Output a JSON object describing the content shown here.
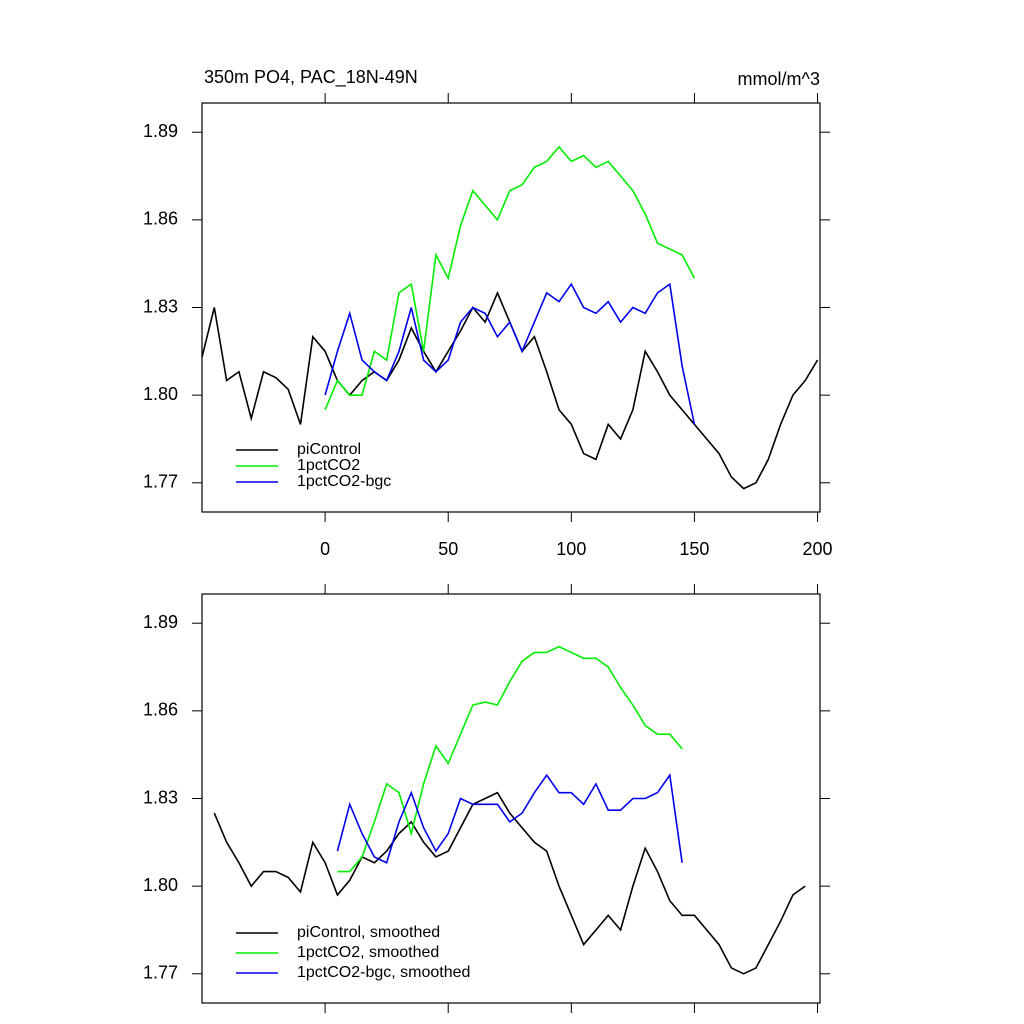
{
  "chart_data": [
    {
      "type": "line",
      "title": "350m PO4, PAC_18N-49N",
      "units": "mmol/m^3",
      "x": [
        -50,
        -45,
        -40,
        -35,
        -30,
        -25,
        -20,
        -15,
        -10,
        -5,
        0,
        5,
        10,
        15,
        20,
        25,
        30,
        35,
        40,
        45,
        50,
        55,
        60,
        65,
        70,
        75,
        80,
        85,
        90,
        95,
        100,
        105,
        110,
        115,
        120,
        125,
        130,
        135,
        140,
        145,
        150,
        155,
        160,
        165,
        170,
        175,
        180,
        185,
        190,
        195,
        200
      ],
      "xlim": [
        -50,
        201
      ],
      "xticks": [
        0,
        50,
        100,
        150,
        200
      ],
      "show_xtick_labels": true,
      "ylim": [
        1.76,
        1.9
      ],
      "yticks": [
        1.77,
        {
          "value": 1.8,
          "label": "1.80"
        },
        1.83,
        1.86,
        1.89
      ],
      "legend": "lower left",
      "series": [
        {
          "name": "piControl",
          "color": "#000000",
          "values": [
            1.813,
            1.83,
            1.805,
            1.808,
            1.792,
            1.808,
            1.806,
            1.802,
            1.79,
            1.82,
            1.815,
            1.805,
            1.8,
            1.805,
            1.808,
            1.805,
            1.812,
            1.823,
            1.815,
            1.808,
            1.815,
            1.822,
            1.83,
            1.825,
            1.835,
            1.825,
            1.815,
            1.82,
            1.808,
            1.795,
            1.79,
            1.78,
            1.778,
            1.79,
            1.785,
            1.795,
            1.815,
            1.808,
            1.8,
            1.795,
            1.79,
            1.785,
            1.78,
            1.772,
            1.768,
            1.77,
            1.778,
            1.79,
            1.8,
            1.805,
            1.812
          ]
        },
        {
          "name": "1pctCO2",
          "color": "#00ee00",
          "values": [
            null,
            null,
            null,
            null,
            null,
            null,
            null,
            null,
            null,
            null,
            1.795,
            1.805,
            1.8,
            1.8,
            1.815,
            1.812,
            1.835,
            1.838,
            1.815,
            1.848,
            1.84,
            1.858,
            1.87,
            1.865,
            1.86,
            1.87,
            1.872,
            1.878,
            1.88,
            1.885,
            1.88,
            1.882,
            1.878,
            1.88,
            1.875,
            1.87,
            1.862,
            1.852,
            1.85,
            1.848,
            1.84,
            null,
            null,
            null,
            null,
            null,
            null,
            null,
            null,
            null,
            null
          ]
        },
        {
          "name": "1pctCO2-bgc",
          "color": "#0000ee",
          "values": [
            null,
            null,
            null,
            null,
            null,
            null,
            null,
            null,
            null,
            null,
            1.8,
            1.815,
            1.828,
            1.812,
            1.808,
            1.805,
            1.815,
            1.83,
            1.812,
            1.808,
            1.812,
            1.825,
            1.83,
            1.828,
            1.82,
            1.825,
            1.815,
            1.825,
            1.835,
            1.832,
            1.838,
            1.83,
            1.828,
            1.832,
            1.825,
            1.83,
            1.828,
            1.835,
            1.838,
            1.81,
            1.79,
            null,
            null,
            null,
            null,
            null,
            null,
            null,
            null,
            null,
            null
          ]
        }
      ]
    },
    {
      "type": "line",
      "x": [
        -50,
        -45,
        -40,
        -35,
        -30,
        -25,
        -20,
        -15,
        -10,
        -5,
        0,
        5,
        10,
        15,
        20,
        25,
        30,
        35,
        40,
        45,
        50,
        55,
        60,
        65,
        70,
        75,
        80,
        85,
        90,
        95,
        100,
        105,
        110,
        115,
        120,
        125,
        130,
        135,
        140,
        145,
        150,
        155,
        160,
        165,
        170,
        175,
        180,
        185,
        190,
        195,
        200
      ],
      "xlim": [
        -50,
        201
      ],
      "xticks": [
        0,
        50,
        100,
        150,
        200
      ],
      "show_xtick_labels": false,
      "ylim": [
        1.76,
        1.9
      ],
      "yticks": [
        1.77,
        {
          "value": 1.8,
          "label": "1.80"
        },
        1.83,
        1.86,
        1.89
      ],
      "legend": "lower left",
      "series": [
        {
          "name": "piControl, smoothed",
          "color": "#000000",
          "values": [
            null,
            1.825,
            1.815,
            1.808,
            1.8,
            1.805,
            1.805,
            1.803,
            1.798,
            1.815,
            1.808,
            1.797,
            1.802,
            1.81,
            1.808,
            1.812,
            1.818,
            1.822,
            1.815,
            1.81,
            1.812,
            1.82,
            1.828,
            1.83,
            1.832,
            1.825,
            1.82,
            1.815,
            1.812,
            1.8,
            1.79,
            1.78,
            1.785,
            1.79,
            1.785,
            1.8,
            1.813,
            1.805,
            1.795,
            1.79,
            1.79,
            1.785,
            1.78,
            1.772,
            1.77,
            1.772,
            1.78,
            1.788,
            1.797,
            1.8,
            null
          ]
        },
        {
          "name": "1pctCO2, smoothed",
          "color": "#00ee00",
          "values": [
            null,
            null,
            null,
            null,
            null,
            null,
            null,
            null,
            null,
            null,
            null,
            1.805,
            1.805,
            1.81,
            1.822,
            1.835,
            1.832,
            1.818,
            1.835,
            1.848,
            1.842,
            1.852,
            1.862,
            1.863,
            1.862,
            1.87,
            1.877,
            1.88,
            1.88,
            1.882,
            1.88,
            1.878,
            1.878,
            1.875,
            1.868,
            1.862,
            1.855,
            1.852,
            1.852,
            1.847,
            null,
            null,
            null,
            null,
            null,
            null,
            null,
            null,
            null,
            null,
            null
          ]
        },
        {
          "name": "1pctCO2-bgc, smoothed",
          "color": "#0000ee",
          "values": [
            null,
            null,
            null,
            null,
            null,
            null,
            null,
            null,
            null,
            null,
            null,
            1.812,
            1.828,
            1.818,
            1.81,
            1.808,
            1.822,
            1.832,
            1.82,
            1.812,
            1.818,
            1.83,
            1.828,
            1.828,
            1.828,
            1.822,
            1.825,
            1.832,
            1.838,
            1.832,
            1.832,
            1.828,
            1.835,
            1.826,
            1.826,
            1.83,
            1.83,
            1.832,
            1.838,
            1.808,
            null,
            null,
            null,
            null,
            null,
            null,
            null,
            null,
            null,
            null,
            null
          ]
        }
      ]
    }
  ]
}
